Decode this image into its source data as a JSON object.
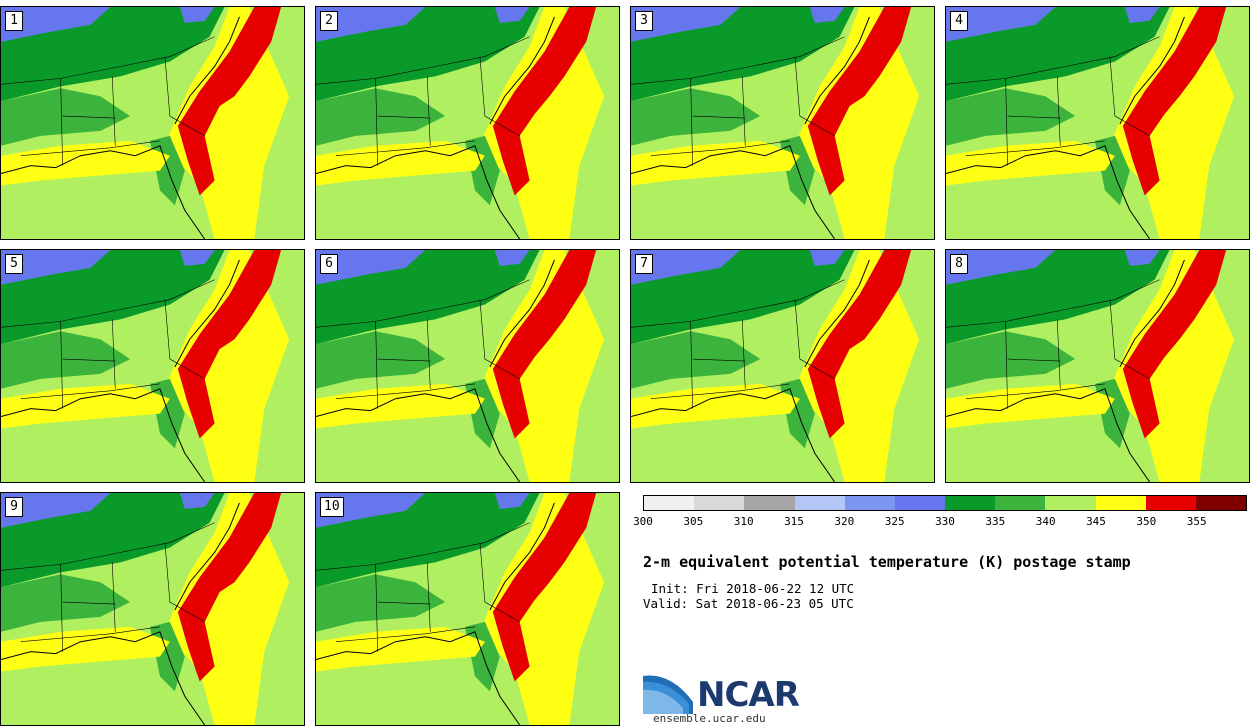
{
  "panels": [
    {
      "label": "1"
    },
    {
      "label": "2"
    },
    {
      "label": "3"
    },
    {
      "label": "4"
    },
    {
      "label": "5"
    },
    {
      "label": "6"
    },
    {
      "label": "7"
    },
    {
      "label": "8"
    },
    {
      "label": "9"
    },
    {
      "label": "10"
    }
  ],
  "legend": {
    "colors": [
      "#f0f0f0",
      "#d9d9d9",
      "#a6a6a6",
      "#b3c6f5",
      "#7b96f0",
      "#6677ee",
      "#0a9a2a",
      "#3cb33c",
      "#b0f060",
      "#ffff14",
      "#e60000",
      "#800000"
    ],
    "ticks": [
      "300",
      "305",
      "310",
      "315",
      "320",
      "325",
      "330",
      "335",
      "340",
      "345",
      "350",
      "355"
    ]
  },
  "title": "2-m equivalent potential temperature (K) postage stamp",
  "init": "Init: Fri 2018-06-22 12 UTC",
  "valid": "Valid: Sat 2018-06-23 05 UTC",
  "logo_text": "NCAR",
  "website": "ensemble.ucar.edu",
  "map_colors": {
    "cold": "#6677ee",
    "dark_green": "#0a9a2a",
    "mid_green": "#3cb33c",
    "light_green": "#b0f060",
    "yellow": "#ffff14",
    "red": "#e60000",
    "line": "#000000"
  }
}
